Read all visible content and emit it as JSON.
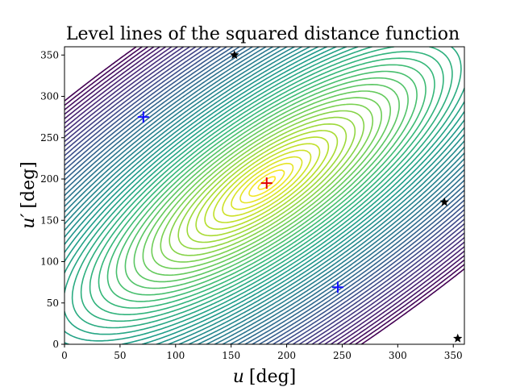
{
  "chart_data": {
    "type": "contour",
    "title": "Level lines of the squared distance function",
    "xlabel_var": "u",
    "xlabel_unit": "[deg]",
    "ylabel_var": "u′",
    "ylabel_unit": "[deg]",
    "xlim": [
      0,
      360
    ],
    "ylim": [
      0,
      360
    ],
    "xticks": [
      0,
      50,
      100,
      150,
      200,
      250,
      300,
      350
    ],
    "yticks": [
      0,
      50,
      100,
      150,
      200,
      250,
      300,
      350
    ],
    "grid": false,
    "colormap": "viridis",
    "colors": {
      "low": "#440154",
      "mid": "#21918c",
      "high": "#fde725"
    },
    "contour_center": {
      "x": 182,
      "y": 195
    },
    "markers": [
      {
        "name": "red-cross",
        "symbol": "+",
        "color": "#e00000",
        "x": 182,
        "y": 195
      },
      {
        "name": "blue-cross-1",
        "symbol": "+",
        "color": "#1010ff",
        "x": 71,
        "y": 275
      },
      {
        "name": "blue-cross-2",
        "symbol": "+",
        "color": "#1010ff",
        "x": 246,
        "y": 69
      },
      {
        "name": "star-1",
        "symbol": "star",
        "color": "#000000",
        "x": 153,
        "y": 350
      },
      {
        "name": "star-2",
        "symbol": "star",
        "color": "#000000",
        "x": 342,
        "y": 172
      },
      {
        "name": "star-3",
        "symbol": "star",
        "color": "#000000",
        "x": 354,
        "y": 7
      }
    ]
  }
}
